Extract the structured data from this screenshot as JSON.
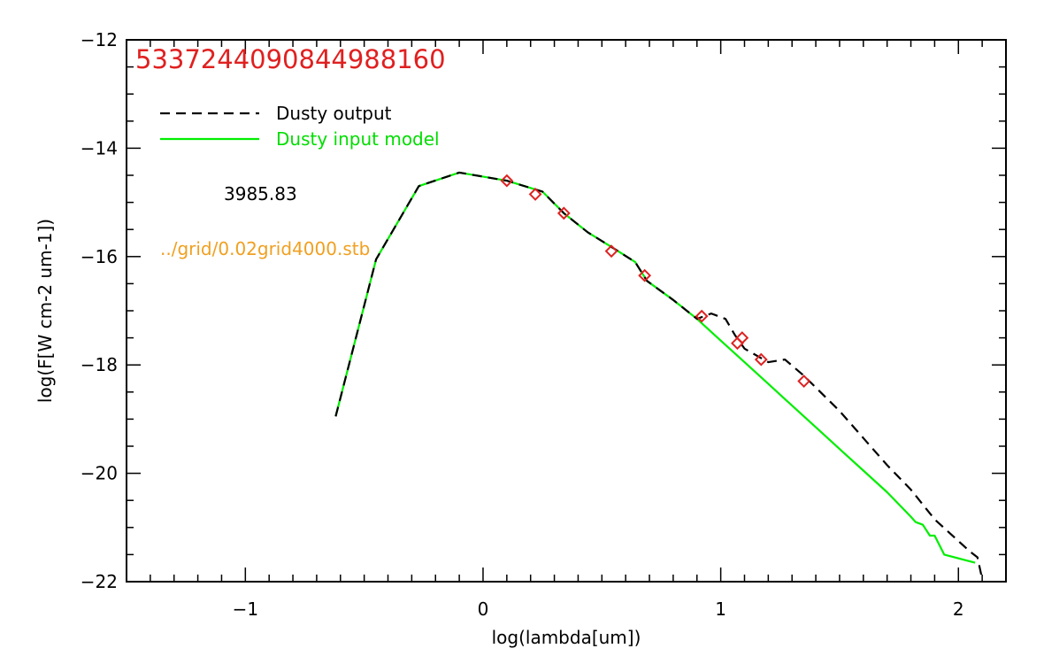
{
  "chart_data": {
    "type": "line",
    "title": "5337244090844988160",
    "xlabel": "log(lambda[um])",
    "ylabel": "log(F[W cm-2 um-1])",
    "xlim": [
      -1.5,
      2.2
    ],
    "ylim": [
      -22,
      -12
    ],
    "xticks": [
      -1,
      0,
      1,
      2
    ],
    "yticks": [
      -12,
      -14,
      -16,
      -18,
      -20,
      -22
    ],
    "x_minor_step": 0.1,
    "y_minor_step": 0.5,
    "legend_placement": "top-left",
    "series": [
      {
        "name": "Dusty output",
        "style": "dashed",
        "color": "#000000",
        "x": [
          -0.62,
          -0.45,
          -0.27,
          -0.1,
          0.1,
          0.25,
          0.34,
          0.44,
          0.55,
          0.64,
          0.69,
          0.8,
          0.9,
          0.96,
          1.02,
          1.06,
          1.1,
          1.2,
          1.27,
          1.35,
          1.5,
          1.6,
          1.7,
          1.8,
          1.9,
          2.05,
          2.08,
          2.1
        ],
        "y": [
          -18.95,
          -16.05,
          -14.7,
          -14.45,
          -14.6,
          -14.8,
          -15.2,
          -15.55,
          -15.85,
          -16.1,
          -16.45,
          -16.8,
          -17.15,
          -17.05,
          -17.15,
          -17.45,
          -17.7,
          -17.95,
          -17.9,
          -18.2,
          -18.85,
          -19.35,
          -19.85,
          -20.3,
          -20.85,
          -21.45,
          -21.55,
          -21.95
        ]
      },
      {
        "name": "Dusty input model",
        "style": "solid",
        "color": "#00ee00",
        "x": [
          -0.62,
          -0.45,
          -0.27,
          -0.1,
          0.1,
          0.25,
          0.34,
          0.44,
          0.55,
          0.64,
          0.69,
          0.8,
          0.9,
          1.0,
          1.1,
          1.2,
          1.3,
          1.4,
          1.5,
          1.6,
          1.7,
          1.8,
          1.82,
          1.85,
          1.88,
          1.9,
          1.94,
          2.07
        ],
        "y": [
          -18.95,
          -16.05,
          -14.7,
          -14.45,
          -14.6,
          -14.8,
          -15.2,
          -15.55,
          -15.85,
          -16.1,
          -16.45,
          -16.8,
          -17.15,
          -17.55,
          -17.95,
          -18.35,
          -18.75,
          -19.15,
          -19.55,
          -19.95,
          -20.35,
          -20.8,
          -20.9,
          -20.95,
          -21.15,
          -21.15,
          -21.5,
          -21.65
        ]
      },
      {
        "name": "",
        "style": "markers",
        "marker": "diamond",
        "color": "#dd2222",
        "x": [
          0.1,
          0.22,
          0.34,
          0.54,
          0.68,
          0.92,
          1.07,
          1.09,
          1.17,
          1.35
        ],
        "y": [
          -14.6,
          -14.85,
          -15.2,
          -15.9,
          -16.35,
          -17.1,
          -17.6,
          -17.5,
          -17.9,
          -18.3
        ]
      }
    ],
    "annotations": [
      {
        "text": "3985.83",
        "color": "#000000"
      },
      {
        "text": "../grid/0.02grid4000.stb",
        "color": "#f0a020"
      }
    ]
  }
}
